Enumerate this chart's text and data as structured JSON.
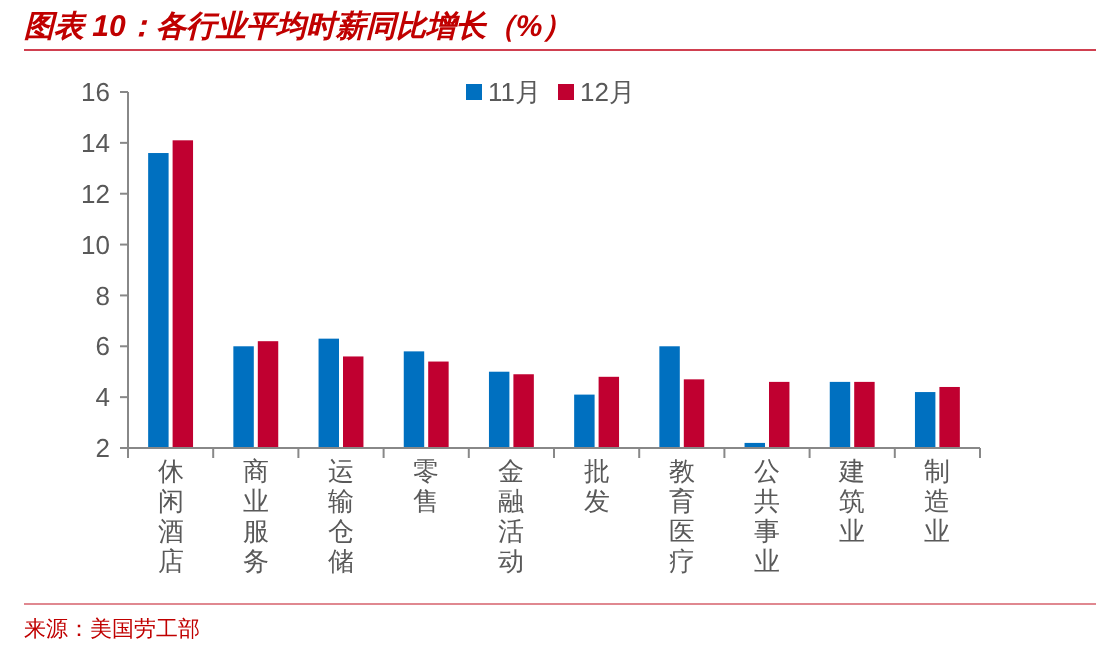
{
  "chart_data": {
    "type": "bar",
    "title": "图表 10：各行业平均时薪同比增长（%）",
    "categories": [
      "休闲酒店",
      "商业服务",
      "运输仓储",
      "零售",
      "金融活动",
      "批发",
      "教育医疗",
      "公共事业",
      "建筑业",
      "制造业"
    ],
    "series": [
      {
        "name": "11月",
        "color": "#0070c0",
        "values": [
          13.6,
          6.0,
          6.3,
          5.8,
          5.0,
          4.1,
          6.0,
          2.2,
          4.6,
          4.2
        ]
      },
      {
        "name": "12月",
        "color": "#c00030",
        "values": [
          14.1,
          6.2,
          5.6,
          5.4,
          4.9,
          4.8,
          4.7,
          4.6,
          4.6,
          4.4
        ]
      }
    ],
    "ylim": [
      2,
      16
    ],
    "yticks": [
      2,
      4,
      6,
      8,
      10,
      12,
      14,
      16
    ],
    "grid": false,
    "legend": "top",
    "annotations": [
      "来源：美国劳工部"
    ]
  }
}
